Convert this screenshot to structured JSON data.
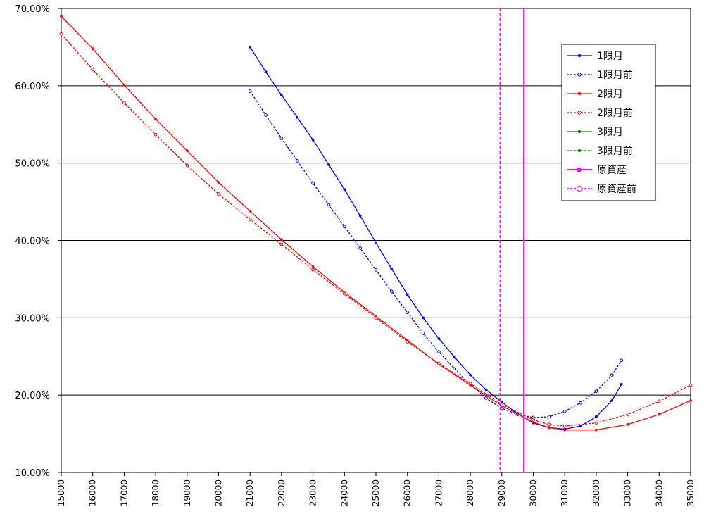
{
  "chart_data": {
    "type": "line",
    "title": "",
    "xlabel": "",
    "ylabel": "",
    "xlim": [
      15000,
      35000
    ],
    "ylim": [
      0.1,
      0.7
    ],
    "grid": "horizontal",
    "legend_position": "top-right",
    "x_ticks": [
      "15000",
      "16000",
      "17000",
      "18000",
      "19000",
      "20000",
      "21000",
      "22000",
      "23000",
      "24000",
      "25000",
      "26000",
      "27000",
      "28000",
      "29000",
      "30000",
      "31000",
      "32000",
      "33000",
      "34000",
      "35000"
    ],
    "y_ticks": [
      "10.00%",
      "20.00%",
      "30.00%",
      "40.00%",
      "50.00%",
      "60.00%",
      "70.00%"
    ],
    "series": [
      {
        "name": "1限月",
        "color": "#0000ff",
        "style": "solid",
        "marker": "filled",
        "points": [
          [
            21000,
            0.65
          ],
          [
            21500,
            0.618
          ],
          [
            22000,
            0.588
          ],
          [
            22500,
            0.559
          ],
          [
            23000,
            0.53
          ],
          [
            23500,
            0.498
          ],
          [
            24000,
            0.466
          ],
          [
            24500,
            0.432
          ],
          [
            25000,
            0.397
          ],
          [
            25500,
            0.363
          ],
          [
            26000,
            0.33
          ],
          [
            26500,
            0.3
          ],
          [
            27000,
            0.273
          ],
          [
            27500,
            0.249
          ],
          [
            28000,
            0.226
          ],
          [
            28500,
            0.207
          ],
          [
            29000,
            0.191
          ],
          [
            29500,
            0.176
          ],
          [
            30000,
            0.164
          ],
          [
            30500,
            0.158
          ],
          [
            31000,
            0.156
          ],
          [
            31500,
            0.16
          ],
          [
            32000,
            0.172
          ],
          [
            32500,
            0.193
          ],
          [
            32800,
            0.214
          ]
        ]
      },
      {
        "name": "1限月前",
        "color": "#0000ff",
        "style": "dashed",
        "marker": "open",
        "points": [
          [
            21000,
            0.593
          ],
          [
            21500,
            0.562
          ],
          [
            22000,
            0.532
          ],
          [
            22500,
            0.503
          ],
          [
            23000,
            0.474
          ],
          [
            23500,
            0.446
          ],
          [
            24000,
            0.418
          ],
          [
            24500,
            0.39
          ],
          [
            25000,
            0.362
          ],
          [
            25500,
            0.334
          ],
          [
            26000,
            0.307
          ],
          [
            26500,
            0.28
          ],
          [
            27000,
            0.256
          ],
          [
            27500,
            0.234
          ],
          [
            28000,
            0.214
          ],
          [
            28500,
            0.196
          ],
          [
            29000,
            0.183
          ],
          [
            29500,
            0.175
          ],
          [
            30000,
            0.171
          ],
          [
            30500,
            0.172
          ],
          [
            31000,
            0.179
          ],
          [
            31500,
            0.19
          ],
          [
            32000,
            0.205
          ],
          [
            32500,
            0.226
          ],
          [
            32800,
            0.245
          ]
        ]
      },
      {
        "name": "2限月",
        "color": "#ff0000",
        "style": "solid",
        "marker": "filled",
        "points": [
          [
            15000,
            0.69
          ],
          [
            16000,
            0.648
          ],
          [
            17000,
            0.601
          ],
          [
            18000,
            0.557
          ],
          [
            19000,
            0.516
          ],
          [
            20000,
            0.475
          ],
          [
            21000,
            0.438
          ],
          [
            22000,
            0.401
          ],
          [
            23000,
            0.366
          ],
          [
            24000,
            0.333
          ],
          [
            25000,
            0.302
          ],
          [
            26000,
            0.271
          ],
          [
            27000,
            0.24
          ],
          [
            28000,
            0.213
          ],
          [
            29000,
            0.186
          ],
          [
            30000,
            0.165
          ],
          [
            30500,
            0.158
          ],
          [
            31000,
            0.155
          ],
          [
            32000,
            0.155
          ],
          [
            33000,
            0.162
          ],
          [
            34000,
            0.175
          ],
          [
            35000,
            0.193
          ]
        ]
      },
      {
        "name": "2限月前",
        "color": "#ff0000",
        "style": "dashed",
        "marker": "open",
        "points": [
          [
            15000,
            0.667
          ],
          [
            16000,
            0.621
          ],
          [
            17000,
            0.578
          ],
          [
            18000,
            0.537
          ],
          [
            19000,
            0.497
          ],
          [
            20000,
            0.46
          ],
          [
            21000,
            0.427
          ],
          [
            22000,
            0.395
          ],
          [
            23000,
            0.362
          ],
          [
            24000,
            0.331
          ],
          [
            25000,
            0.3
          ],
          [
            26000,
            0.269
          ],
          [
            27000,
            0.241
          ],
          [
            28000,
            0.215
          ],
          [
            29000,
            0.188
          ],
          [
            30000,
            0.168
          ],
          [
            30500,
            0.162
          ],
          [
            31000,
            0.16
          ],
          [
            32000,
            0.164
          ],
          [
            33000,
            0.175
          ],
          [
            34000,
            0.192
          ],
          [
            35000,
            0.213
          ]
        ]
      },
      {
        "name": "3限月",
        "color": "#008000",
        "style": "solid",
        "marker": "filled",
        "points": []
      },
      {
        "name": "3限月前",
        "color": "#008000",
        "style": "dashed",
        "marker": "filled",
        "points": []
      },
      {
        "name": "原資産",
        "color": "#ff00ff",
        "style": "solid",
        "marker": "square",
        "vertical_x": 29700
      },
      {
        "name": "原資産前",
        "color": "#ff00ff",
        "style": "dashed",
        "marker": "open",
        "vertical_x": 28950
      }
    ]
  }
}
